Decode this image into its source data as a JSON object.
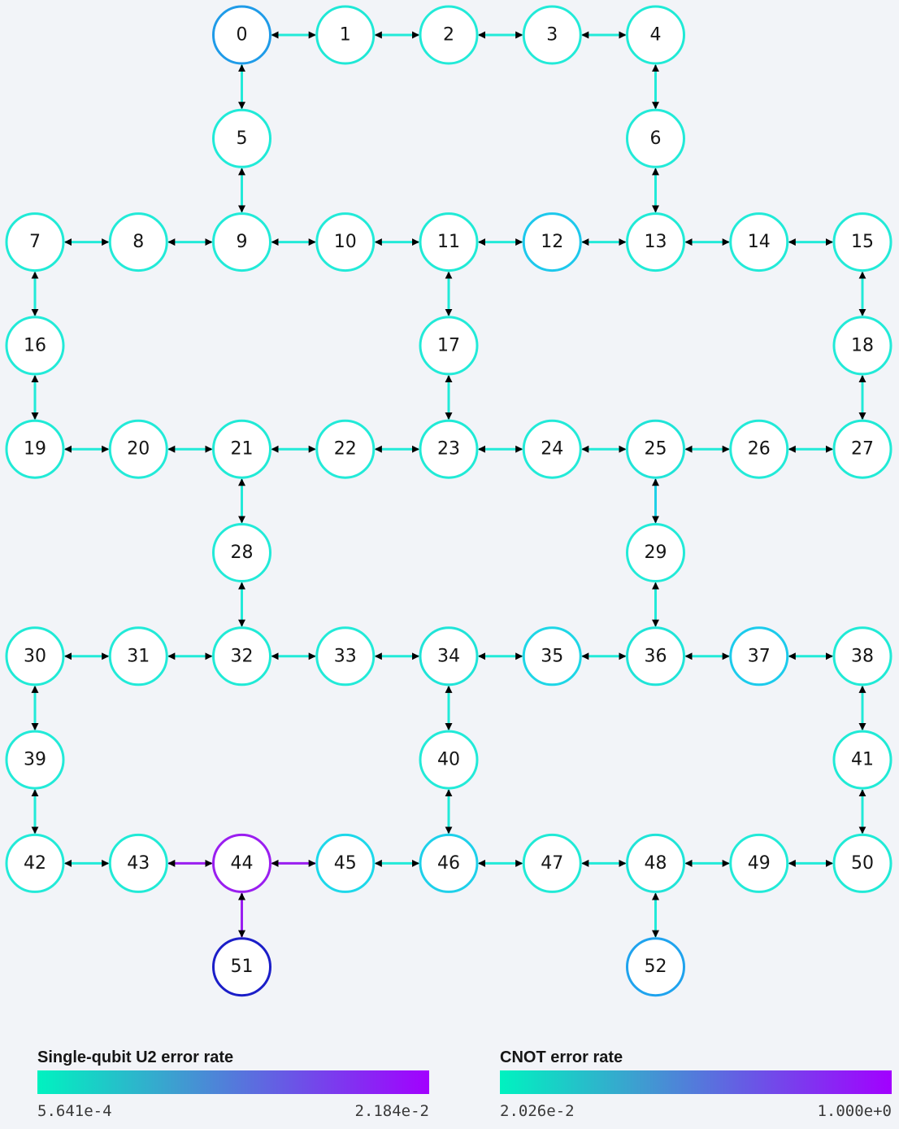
{
  "colors": {
    "low": "#00f2c0",
    "high": "#a200ff",
    "background": "#f2f4f8",
    "node_fill": "#ffffff",
    "label": "#161616"
  },
  "qubits": [
    {
      "id": "0",
      "row": 0,
      "col": 2,
      "color": "#1f9be8"
    },
    {
      "id": "1",
      "row": 0,
      "col": 3,
      "color": "#20e8d6"
    },
    {
      "id": "2",
      "row": 0,
      "col": 4,
      "color": "#22ead8"
    },
    {
      "id": "3",
      "row": 0,
      "col": 5,
      "color": "#22ead8"
    },
    {
      "id": "4",
      "row": 0,
      "col": 6,
      "color": "#20ead6"
    },
    {
      "id": "5",
      "row": 1,
      "col": 2,
      "color": "#20ead8"
    },
    {
      "id": "6",
      "row": 1,
      "col": 6,
      "color": "#22ead8"
    },
    {
      "id": "7",
      "row": 2,
      "col": 0,
      "color": "#20ead6"
    },
    {
      "id": "8",
      "row": 2,
      "col": 1,
      "color": "#22ead8"
    },
    {
      "id": "9",
      "row": 2,
      "col": 2,
      "color": "#22ead8"
    },
    {
      "id": "10",
      "row": 2,
      "col": 3,
      "color": "#22ead8"
    },
    {
      "id": "11",
      "row": 2,
      "col": 4,
      "color": "#20ead6"
    },
    {
      "id": "12",
      "row": 2,
      "col": 5,
      "color": "#1dc8ec"
    },
    {
      "id": "13",
      "row": 2,
      "col": 6,
      "color": "#20ead6"
    },
    {
      "id": "14",
      "row": 2,
      "col": 7,
      "color": "#22ead8"
    },
    {
      "id": "15",
      "row": 2,
      "col": 8,
      "color": "#22ead8"
    },
    {
      "id": "16",
      "row": 3,
      "col": 0,
      "color": "#22ead8"
    },
    {
      "id": "17",
      "row": 3,
      "col": 4,
      "color": "#22ead8"
    },
    {
      "id": "18",
      "row": 3,
      "col": 8,
      "color": "#22ead8"
    },
    {
      "id": "19",
      "row": 4,
      "col": 0,
      "color": "#20ead6"
    },
    {
      "id": "20",
      "row": 4,
      "col": 1,
      "color": "#22ead8"
    },
    {
      "id": "21",
      "row": 4,
      "col": 2,
      "color": "#20ead6"
    },
    {
      "id": "22",
      "row": 4,
      "col": 3,
      "color": "#22ead8"
    },
    {
      "id": "23",
      "row": 4,
      "col": 4,
      "color": "#20ead6"
    },
    {
      "id": "24",
      "row": 4,
      "col": 5,
      "color": "#22ead8"
    },
    {
      "id": "25",
      "row": 4,
      "col": 6,
      "color": "#20e4d8"
    },
    {
      "id": "26",
      "row": 4,
      "col": 7,
      "color": "#22ead8"
    },
    {
      "id": "27",
      "row": 4,
      "col": 8,
      "color": "#20ead6"
    },
    {
      "id": "28",
      "row": 5,
      "col": 2,
      "color": "#22ead8"
    },
    {
      "id": "29",
      "row": 5,
      "col": 6,
      "color": "#22ead8"
    },
    {
      "id": "30",
      "row": 6,
      "col": 0,
      "color": "#20ead6"
    },
    {
      "id": "31",
      "row": 6,
      "col": 1,
      "color": "#22ead8"
    },
    {
      "id": "32",
      "row": 6,
      "col": 2,
      "color": "#20ead6"
    },
    {
      "id": "33",
      "row": 6,
      "col": 3,
      "color": "#22ead8"
    },
    {
      "id": "34",
      "row": 6,
      "col": 4,
      "color": "#20e4d8"
    },
    {
      "id": "35",
      "row": 6,
      "col": 5,
      "color": "#1ed6e6"
    },
    {
      "id": "36",
      "row": 6,
      "col": 6,
      "color": "#20e4d8"
    },
    {
      "id": "37",
      "row": 6,
      "col": 7,
      "color": "#1ccbec"
    },
    {
      "id": "38",
      "row": 6,
      "col": 8,
      "color": "#20ead6"
    },
    {
      "id": "39",
      "row": 7,
      "col": 0,
      "color": "#22ead8"
    },
    {
      "id": "40",
      "row": 7,
      "col": 4,
      "color": "#22ead8"
    },
    {
      "id": "41",
      "row": 7,
      "col": 8,
      "color": "#20ead6"
    },
    {
      "id": "42",
      "row": 8,
      "col": 0,
      "color": "#22ead8"
    },
    {
      "id": "43",
      "row": 8,
      "col": 1,
      "color": "#20ead6"
    },
    {
      "id": "44",
      "row": 8,
      "col": 2,
      "color": "#9a1ef0"
    },
    {
      "id": "45",
      "row": 8,
      "col": 3,
      "color": "#1dd8ea"
    },
    {
      "id": "46",
      "row": 8,
      "col": 4,
      "color": "#1ed0ea"
    },
    {
      "id": "47",
      "row": 8,
      "col": 5,
      "color": "#20ead6"
    },
    {
      "id": "48",
      "row": 8,
      "col": 6,
      "color": "#20e4d8"
    },
    {
      "id": "49",
      "row": 8,
      "col": 7,
      "color": "#22ead8"
    },
    {
      "id": "50",
      "row": 8,
      "col": 8,
      "color": "#20ead6"
    },
    {
      "id": "51",
      "row": 9,
      "col": 2,
      "color": "#1b1ec8"
    },
    {
      "id": "52",
      "row": 9,
      "col": 6,
      "color": "#1fa3ee"
    }
  ],
  "couplings": [
    {
      "a": "0",
      "b": "1",
      "color": "#22ead8"
    },
    {
      "a": "1",
      "b": "2",
      "color": "#22ead8"
    },
    {
      "a": "2",
      "b": "3",
      "color": "#22ead8"
    },
    {
      "a": "3",
      "b": "4",
      "color": "#22ead8"
    },
    {
      "a": "0",
      "b": "5",
      "color": "#22ead8"
    },
    {
      "a": "4",
      "b": "6",
      "color": "#22ead8"
    },
    {
      "a": "5",
      "b": "9",
      "color": "#22ead8"
    },
    {
      "a": "6",
      "b": "13",
      "color": "#22ead8"
    },
    {
      "a": "7",
      "b": "8",
      "color": "#22ead8"
    },
    {
      "a": "8",
      "b": "9",
      "color": "#22ead8"
    },
    {
      "a": "9",
      "b": "10",
      "color": "#22ead8"
    },
    {
      "a": "10",
      "b": "11",
      "color": "#22ead8"
    },
    {
      "a": "11",
      "b": "12",
      "color": "#22ead8"
    },
    {
      "a": "12",
      "b": "13",
      "color": "#22ead8"
    },
    {
      "a": "13",
      "b": "14",
      "color": "#22ead8"
    },
    {
      "a": "14",
      "b": "15",
      "color": "#22ead8"
    },
    {
      "a": "7",
      "b": "16",
      "color": "#22ead8"
    },
    {
      "a": "11",
      "b": "17",
      "color": "#22ead8"
    },
    {
      "a": "15",
      "b": "18",
      "color": "#22ead8"
    },
    {
      "a": "16",
      "b": "19",
      "color": "#22ead8"
    },
    {
      "a": "17",
      "b": "23",
      "color": "#22ead8"
    },
    {
      "a": "18",
      "b": "27",
      "color": "#22ead8"
    },
    {
      "a": "19",
      "b": "20",
      "color": "#22ead8"
    },
    {
      "a": "20",
      "b": "21",
      "color": "#22ead8"
    },
    {
      "a": "21",
      "b": "22",
      "color": "#22ead8"
    },
    {
      "a": "22",
      "b": "23",
      "color": "#22ead8"
    },
    {
      "a": "23",
      "b": "24",
      "color": "#22ead8"
    },
    {
      "a": "24",
      "b": "25",
      "color": "#22ead8"
    },
    {
      "a": "25",
      "b": "26",
      "color": "#22ead8"
    },
    {
      "a": "26",
      "b": "27",
      "color": "#22ead8"
    },
    {
      "a": "21",
      "b": "28",
      "color": "#22ead8"
    },
    {
      "a": "25",
      "b": "29",
      "color": "#1fd0e6"
    },
    {
      "a": "28",
      "b": "32",
      "color": "#22ead8"
    },
    {
      "a": "29",
      "b": "36",
      "color": "#22ead8"
    },
    {
      "a": "30",
      "b": "31",
      "color": "#22ead8"
    },
    {
      "a": "31",
      "b": "32",
      "color": "#22ead8"
    },
    {
      "a": "32",
      "b": "33",
      "color": "#22ead8"
    },
    {
      "a": "33",
      "b": "34",
      "color": "#22ead8"
    },
    {
      "a": "34",
      "b": "35",
      "color": "#22ead8"
    },
    {
      "a": "35",
      "b": "36",
      "color": "#22ead8"
    },
    {
      "a": "36",
      "b": "37",
      "color": "#22ead8"
    },
    {
      "a": "37",
      "b": "38",
      "color": "#22ead8"
    },
    {
      "a": "30",
      "b": "39",
      "color": "#22ead8"
    },
    {
      "a": "34",
      "b": "40",
      "color": "#22ead8"
    },
    {
      "a": "38",
      "b": "41",
      "color": "#22ead8"
    },
    {
      "a": "39",
      "b": "42",
      "color": "#22ead8"
    },
    {
      "a": "40",
      "b": "46",
      "color": "#22ead8"
    },
    {
      "a": "41",
      "b": "50",
      "color": "#22ead8"
    },
    {
      "a": "42",
      "b": "43",
      "color": "#22ead8"
    },
    {
      "a": "43",
      "b": "44",
      "color": "#9a1ef0"
    },
    {
      "a": "44",
      "b": "45",
      "color": "#9a1ef0"
    },
    {
      "a": "45",
      "b": "46",
      "color": "#22ead8"
    },
    {
      "a": "46",
      "b": "47",
      "color": "#22ead8"
    },
    {
      "a": "47",
      "b": "48",
      "color": "#22ead8"
    },
    {
      "a": "48",
      "b": "49",
      "color": "#22ead8"
    },
    {
      "a": "49",
      "b": "50",
      "color": "#22ead8"
    },
    {
      "a": "44",
      "b": "51",
      "color": "#9a1ef0"
    },
    {
      "a": "48",
      "b": "52",
      "color": "#22ead8"
    }
  ],
  "legend": {
    "single_qubit": {
      "title": "Single-qubit U2 error rate",
      "min": "5.641e-4",
      "max": "2.184e-2"
    },
    "cnot": {
      "title": "CNOT error rate",
      "min": "2.026e-2",
      "max": "1.000e+0"
    }
  }
}
